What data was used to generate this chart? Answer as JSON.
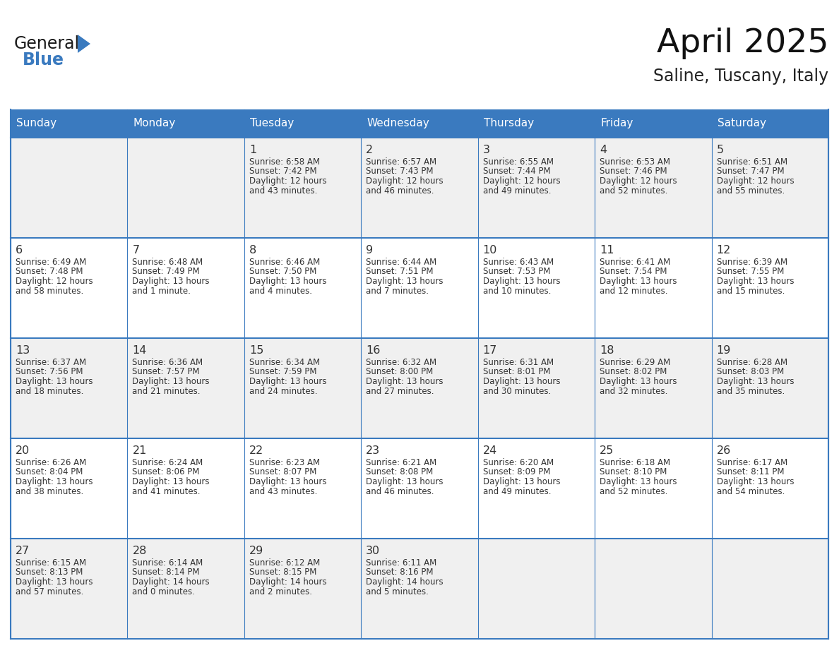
{
  "title": "April 2025",
  "subtitle": "Saline, Tuscany, Italy",
  "header_bg": "#3a7abf",
  "header_text": "#ffffff",
  "cell_bg_odd": "#f0f0f0",
  "cell_bg_even": "#ffffff",
  "day_number_color": "#333333",
  "text_color": "#333333",
  "line_color": "#3a7abf",
  "days_of_week": [
    "Sunday",
    "Monday",
    "Tuesday",
    "Wednesday",
    "Thursday",
    "Friday",
    "Saturday"
  ],
  "weeks": [
    [
      {
        "day": "",
        "info": ""
      },
      {
        "day": "",
        "info": ""
      },
      {
        "day": "1",
        "info": "Sunrise: 6:58 AM\nSunset: 7:42 PM\nDaylight: 12 hours\nand 43 minutes."
      },
      {
        "day": "2",
        "info": "Sunrise: 6:57 AM\nSunset: 7:43 PM\nDaylight: 12 hours\nand 46 minutes."
      },
      {
        "day": "3",
        "info": "Sunrise: 6:55 AM\nSunset: 7:44 PM\nDaylight: 12 hours\nand 49 minutes."
      },
      {
        "day": "4",
        "info": "Sunrise: 6:53 AM\nSunset: 7:46 PM\nDaylight: 12 hours\nand 52 minutes."
      },
      {
        "day": "5",
        "info": "Sunrise: 6:51 AM\nSunset: 7:47 PM\nDaylight: 12 hours\nand 55 minutes."
      }
    ],
    [
      {
        "day": "6",
        "info": "Sunrise: 6:49 AM\nSunset: 7:48 PM\nDaylight: 12 hours\nand 58 minutes."
      },
      {
        "day": "7",
        "info": "Sunrise: 6:48 AM\nSunset: 7:49 PM\nDaylight: 13 hours\nand 1 minute."
      },
      {
        "day": "8",
        "info": "Sunrise: 6:46 AM\nSunset: 7:50 PM\nDaylight: 13 hours\nand 4 minutes."
      },
      {
        "day": "9",
        "info": "Sunrise: 6:44 AM\nSunset: 7:51 PM\nDaylight: 13 hours\nand 7 minutes."
      },
      {
        "day": "10",
        "info": "Sunrise: 6:43 AM\nSunset: 7:53 PM\nDaylight: 13 hours\nand 10 minutes."
      },
      {
        "day": "11",
        "info": "Sunrise: 6:41 AM\nSunset: 7:54 PM\nDaylight: 13 hours\nand 12 minutes."
      },
      {
        "day": "12",
        "info": "Sunrise: 6:39 AM\nSunset: 7:55 PM\nDaylight: 13 hours\nand 15 minutes."
      }
    ],
    [
      {
        "day": "13",
        "info": "Sunrise: 6:37 AM\nSunset: 7:56 PM\nDaylight: 13 hours\nand 18 minutes."
      },
      {
        "day": "14",
        "info": "Sunrise: 6:36 AM\nSunset: 7:57 PM\nDaylight: 13 hours\nand 21 minutes."
      },
      {
        "day": "15",
        "info": "Sunrise: 6:34 AM\nSunset: 7:59 PM\nDaylight: 13 hours\nand 24 minutes."
      },
      {
        "day": "16",
        "info": "Sunrise: 6:32 AM\nSunset: 8:00 PM\nDaylight: 13 hours\nand 27 minutes."
      },
      {
        "day": "17",
        "info": "Sunrise: 6:31 AM\nSunset: 8:01 PM\nDaylight: 13 hours\nand 30 minutes."
      },
      {
        "day": "18",
        "info": "Sunrise: 6:29 AM\nSunset: 8:02 PM\nDaylight: 13 hours\nand 32 minutes."
      },
      {
        "day": "19",
        "info": "Sunrise: 6:28 AM\nSunset: 8:03 PM\nDaylight: 13 hours\nand 35 minutes."
      }
    ],
    [
      {
        "day": "20",
        "info": "Sunrise: 6:26 AM\nSunset: 8:04 PM\nDaylight: 13 hours\nand 38 minutes."
      },
      {
        "day": "21",
        "info": "Sunrise: 6:24 AM\nSunset: 8:06 PM\nDaylight: 13 hours\nand 41 minutes."
      },
      {
        "day": "22",
        "info": "Sunrise: 6:23 AM\nSunset: 8:07 PM\nDaylight: 13 hours\nand 43 minutes."
      },
      {
        "day": "23",
        "info": "Sunrise: 6:21 AM\nSunset: 8:08 PM\nDaylight: 13 hours\nand 46 minutes."
      },
      {
        "day": "24",
        "info": "Sunrise: 6:20 AM\nSunset: 8:09 PM\nDaylight: 13 hours\nand 49 minutes."
      },
      {
        "day": "25",
        "info": "Sunrise: 6:18 AM\nSunset: 8:10 PM\nDaylight: 13 hours\nand 52 minutes."
      },
      {
        "day": "26",
        "info": "Sunrise: 6:17 AM\nSunset: 8:11 PM\nDaylight: 13 hours\nand 54 minutes."
      }
    ],
    [
      {
        "day": "27",
        "info": "Sunrise: 6:15 AM\nSunset: 8:13 PM\nDaylight: 13 hours\nand 57 minutes."
      },
      {
        "day": "28",
        "info": "Sunrise: 6:14 AM\nSunset: 8:14 PM\nDaylight: 14 hours\nand 0 minutes."
      },
      {
        "day": "29",
        "info": "Sunrise: 6:12 AM\nSunset: 8:15 PM\nDaylight: 14 hours\nand 2 minutes."
      },
      {
        "day": "30",
        "info": "Sunrise: 6:11 AM\nSunset: 8:16 PM\nDaylight: 14 hours\nand 5 minutes."
      },
      {
        "day": "",
        "info": ""
      },
      {
        "day": "",
        "info": ""
      },
      {
        "day": "",
        "info": ""
      }
    ]
  ],
  "figsize": [
    11.88,
    9.18
  ],
  "dpi": 100
}
